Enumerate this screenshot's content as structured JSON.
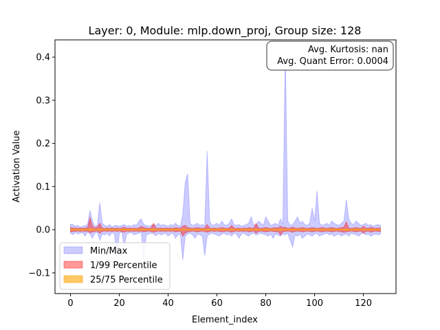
{
  "chart_data": {
    "type": "area",
    "title": "Layer: 0, Module: mlp.down_proj,  Group size: 128",
    "xlabel": "Element_index",
    "ylabel": "Activation Value",
    "xlim": [
      -6.35,
      133.35
    ],
    "ylim": [
      -0.148,
      0.44
    ],
    "x_ticks": [
      0,
      20,
      40,
      60,
      80,
      100,
      120
    ],
    "y_ticks": [
      -0.1,
      0.0,
      0.1,
      0.2,
      0.3,
      0.4
    ],
    "y_tick_labels": [
      "−0.1",
      "0.0",
      "0.1",
      "0.2",
      "0.3",
      "0.4"
    ],
    "grid": false,
    "legend_position": "lower-left",
    "annotation": {
      "line1": "Avg. Kurtosis: nan",
      "line2": "Avg. Quant Error: 0.0004",
      "position": "top-right"
    },
    "x": [
      0,
      1,
      2,
      3,
      4,
      5,
      6,
      7,
      8,
      9,
      10,
      11,
      12,
      13,
      14,
      15,
      16,
      17,
      18,
      19,
      20,
      21,
      22,
      23,
      24,
      25,
      26,
      27,
      28,
      29,
      30,
      31,
      32,
      33,
      34,
      35,
      36,
      37,
      38,
      39,
      40,
      41,
      42,
      43,
      44,
      45,
      46,
      47,
      48,
      49,
      50,
      51,
      52,
      53,
      54,
      55,
      56,
      57,
      58,
      59,
      60,
      61,
      62,
      63,
      64,
      65,
      66,
      67,
      68,
      69,
      70,
      71,
      72,
      73,
      74,
      75,
      76,
      77,
      78,
      79,
      80,
      81,
      82,
      83,
      84,
      85,
      86,
      87,
      88,
      89,
      90,
      91,
      92,
      93,
      94,
      95,
      96,
      97,
      98,
      99,
      100,
      101,
      102,
      103,
      104,
      105,
      106,
      107,
      108,
      109,
      110,
      111,
      112,
      113,
      114,
      115,
      116,
      117,
      118,
      119,
      120,
      121,
      122,
      123,
      124,
      125,
      126,
      127
    ],
    "series": [
      {
        "name": "Min/Max",
        "color": "#0000ff",
        "opacity": 0.2,
        "lower": [
          -0.008,
          -0.012,
          -0.006,
          -0.01,
          -0.008,
          -0.007,
          -0.015,
          -0.005,
          -0.01,
          -0.02,
          -0.008,
          -0.006,
          -0.025,
          -0.01,
          -0.012,
          -0.008,
          -0.015,
          -0.006,
          -0.01,
          -0.065,
          -0.008,
          -0.005,
          -0.04,
          -0.01,
          -0.008,
          -0.006,
          -0.012,
          -0.01,
          -0.008,
          -0.006,
          -0.07,
          -0.012,
          -0.01,
          -0.008,
          -0.01,
          -0.014,
          -0.008,
          -0.012,
          -0.01,
          -0.008,
          -0.015,
          -0.01,
          -0.008,
          -0.02,
          -0.012,
          -0.01,
          -0.07,
          -0.015,
          -0.01,
          -0.008,
          -0.012,
          -0.02,
          -0.01,
          -0.012,
          -0.015,
          -0.06,
          -0.015,
          -0.01,
          -0.008,
          -0.01,
          -0.012,
          -0.015,
          -0.01,
          -0.008,
          -0.012,
          -0.01,
          -0.015,
          -0.008,
          -0.01,
          -0.02,
          -0.01,
          -0.008,
          -0.012,
          -0.015,
          -0.01,
          -0.008,
          -0.012,
          -0.01,
          -0.008,
          -0.01,
          -0.012,
          -0.015,
          -0.01,
          -0.02,
          -0.01,
          -0.012,
          -0.015,
          -0.01,
          -0.012,
          -0.008,
          -0.025,
          -0.04,
          -0.012,
          -0.015,
          -0.01,
          -0.02,
          -0.015,
          -0.01,
          -0.012,
          -0.015,
          -0.01,
          -0.008,
          -0.015,
          -0.012,
          -0.01,
          -0.008,
          -0.012,
          -0.01,
          -0.015,
          -0.012,
          -0.01,
          -0.015,
          -0.012,
          -0.01,
          -0.015,
          -0.008,
          -0.01,
          -0.012,
          -0.015,
          -0.01,
          -0.008,
          -0.012,
          -0.01,
          -0.015,
          -0.012,
          -0.01,
          -0.012,
          -0.01
        ],
        "upper": [
          0.013,
          0.012,
          0.008,
          0.01,
          0.006,
          0.008,
          0.01,
          0.012,
          0.045,
          0.02,
          0.008,
          0.01,
          0.063,
          0.015,
          0.01,
          0.008,
          0.012,
          0.006,
          0.01,
          0.01,
          0.008,
          0.01,
          0.012,
          0.008,
          0.01,
          0.008,
          0.012,
          0.01,
          0.02,
          0.025,
          0.012,
          0.01,
          0.008,
          0.01,
          0.012,
          0.01,
          0.015,
          0.01,
          0.012,
          0.01,
          0.008,
          0.012,
          0.01,
          0.015,
          0.01,
          0.008,
          0.035,
          0.11,
          0.13,
          0.015,
          0.01,
          0.012,
          0.015,
          0.01,
          0.012,
          0.01,
          0.183,
          0.02,
          0.01,
          0.012,
          0.015,
          0.01,
          0.02,
          0.012,
          0.01,
          0.015,
          0.025,
          0.012,
          0.01,
          0.012,
          0.008,
          0.01,
          0.012,
          0.015,
          0.03,
          0.012,
          0.01,
          0.02,
          0.015,
          0.01,
          0.03,
          0.02,
          0.01,
          0.012,
          0.015,
          0.01,
          0.025,
          0.012,
          0.415,
          0.02,
          0.01,
          0.012,
          0.02,
          0.03,
          0.015,
          0.02,
          0.012,
          0.01,
          0.015,
          0.05,
          0.02,
          0.09,
          0.015,
          0.01,
          0.012,
          0.015,
          0.01,
          0.02,
          0.015,
          0.012,
          0.01,
          0.015,
          0.02,
          0.07,
          0.025,
          0.015,
          0.012,
          0.02,
          0.015,
          0.01,
          0.012,
          0.015,
          0.01,
          0.012,
          0.008,
          0.01,
          0.012,
          0.01
        ]
      },
      {
        "name": "1/99 Percentile",
        "color": "#ff0000",
        "opacity": 0.4,
        "lower": [
          -0.005,
          -0.004,
          -0.004,
          -0.003,
          -0.004,
          -0.003,
          -0.004,
          -0.003,
          -0.007,
          -0.005,
          -0.004,
          -0.003,
          -0.008,
          -0.004,
          -0.003,
          -0.004,
          -0.003,
          -0.004,
          -0.003,
          -0.004,
          -0.003,
          -0.004,
          -0.006,
          -0.003,
          -0.004,
          -0.003,
          -0.004,
          -0.003,
          -0.004,
          -0.003,
          -0.005,
          -0.004,
          -0.003,
          -0.004,
          -0.006,
          -0.004,
          -0.003,
          -0.004,
          -0.003,
          -0.004,
          -0.003,
          -0.004,
          -0.003,
          -0.005,
          -0.004,
          -0.003,
          -0.015,
          -0.008,
          -0.005,
          -0.004,
          -0.003,
          -0.004,
          -0.005,
          -0.004,
          -0.003,
          -0.004,
          -0.006,
          -0.004,
          -0.003,
          -0.004,
          -0.003,
          -0.004,
          -0.005,
          -0.004,
          -0.003,
          -0.004,
          -0.006,
          -0.004,
          -0.003,
          -0.004,
          -0.003,
          -0.004,
          -0.003,
          -0.005,
          -0.004,
          -0.003,
          -0.008,
          -0.004,
          -0.003,
          -0.004,
          -0.005,
          -0.004,
          -0.003,
          -0.004,
          -0.005,
          -0.004,
          -0.012,
          -0.005,
          -0.004,
          -0.003,
          -0.004,
          -0.006,
          -0.004,
          -0.003,
          -0.004,
          -0.005,
          -0.004,
          -0.003,
          -0.004,
          -0.005,
          -0.004,
          -0.003,
          -0.004,
          -0.005,
          -0.004,
          -0.003,
          -0.004,
          -0.005,
          -0.004,
          -0.003,
          -0.004,
          -0.005,
          -0.006,
          -0.005,
          -0.004,
          -0.003,
          -0.004,
          -0.005,
          -0.004,
          -0.003,
          -0.008,
          -0.004,
          -0.003,
          -0.006,
          -0.004,
          -0.003,
          -0.004,
          -0.004
        ],
        "upper": [
          0.005,
          0.004,
          0.004,
          0.003,
          0.004,
          0.003,
          0.004,
          0.005,
          0.028,
          0.008,
          0.004,
          0.006,
          0.015,
          0.004,
          0.003,
          0.004,
          0.003,
          0.004,
          0.003,
          0.004,
          0.003,
          0.004,
          0.006,
          0.003,
          0.004,
          0.003,
          0.004,
          0.003,
          0.004,
          0.008,
          0.005,
          0.004,
          0.003,
          0.004,
          0.015,
          0.004,
          0.003,
          0.004,
          0.003,
          0.004,
          0.003,
          0.004,
          0.003,
          0.005,
          0.004,
          0.003,
          0.008,
          0.01,
          0.005,
          0.004,
          0.003,
          0.004,
          0.005,
          0.004,
          0.003,
          0.004,
          0.012,
          0.004,
          0.003,
          0.004,
          0.003,
          0.004,
          0.005,
          0.004,
          0.003,
          0.004,
          0.01,
          0.004,
          0.003,
          0.004,
          0.003,
          0.004,
          0.003,
          0.005,
          0.004,
          0.003,
          0.015,
          0.004,
          0.003,
          0.004,
          0.005,
          0.004,
          0.003,
          0.004,
          0.005,
          0.004,
          0.008,
          0.005,
          0.006,
          0.003,
          0.004,
          0.006,
          0.004,
          0.003,
          0.004,
          0.005,
          0.004,
          0.003,
          0.004,
          0.005,
          0.004,
          0.003,
          0.004,
          0.005,
          0.004,
          0.003,
          0.004,
          0.005,
          0.004,
          0.003,
          0.004,
          0.005,
          0.006,
          0.018,
          0.004,
          0.003,
          0.004,
          0.005,
          0.004,
          0.003,
          0.008,
          0.004,
          0.003,
          0.006,
          0.004,
          0.003,
          0.004,
          0.004
        ]
      },
      {
        "name": "25/75 Percentile",
        "color": "#ffa500",
        "opacity": 0.6,
        "lower": [
          -0.001,
          -0.0015,
          -0.001,
          -0.0012,
          -0.001,
          -0.0015,
          -0.001,
          -0.0012,
          -0.002,
          -0.0015,
          -0.001,
          -0.0012,
          -0.002,
          -0.001,
          -0.0015,
          -0.001,
          -0.0012,
          -0.001,
          -0.0015,
          -0.001,
          -0.0012,
          -0.001,
          -0.0015,
          -0.001,
          -0.0012,
          -0.001,
          -0.0015,
          -0.001,
          -0.0012,
          -0.0015,
          -0.001,
          -0.0012,
          -0.001,
          -0.0015,
          -0.002,
          -0.001,
          -0.0012,
          -0.001,
          -0.0015,
          -0.001,
          -0.0012,
          -0.001,
          -0.0015,
          -0.001,
          -0.0012,
          -0.001,
          -0.002,
          -0.0015,
          -0.001,
          -0.0012,
          -0.001,
          -0.0015,
          -0.001,
          -0.0012,
          -0.001,
          -0.0015,
          -0.001,
          -0.0012,
          -0.001,
          -0.0015,
          -0.001,
          -0.0012,
          -0.001,
          -0.0015,
          -0.001,
          -0.0012,
          -0.0015,
          -0.001,
          -0.0012,
          -0.001,
          -0.0015,
          -0.001,
          -0.0012,
          -0.001,
          -0.0015,
          -0.001,
          -0.002,
          -0.001,
          -0.0012,
          -0.001,
          -0.0015,
          -0.001,
          -0.0012,
          -0.001,
          -0.0015,
          -0.001,
          -0.002,
          -0.0012,
          -0.0015,
          -0.001,
          -0.0012,
          -0.001,
          -0.0015,
          -0.001,
          -0.0012,
          -0.001,
          -0.0015,
          -0.001,
          -0.0012,
          -0.001,
          -0.0015,
          -0.001,
          -0.0012,
          -0.001,
          -0.0015,
          -0.001,
          -0.0012,
          -0.001,
          -0.0015,
          -0.001,
          -0.0012,
          -0.001,
          -0.0015,
          -0.002,
          -0.0012,
          -0.001,
          -0.0015,
          -0.001,
          -0.0012,
          -0.001,
          -0.0015,
          -0.001,
          -0.0012,
          -0.001,
          -0.0015,
          -0.001,
          -0.0012,
          -0.001
        ],
        "upper": [
          0.001,
          0.0015,
          0.001,
          0.0012,
          0.001,
          0.0015,
          0.001,
          0.0012,
          0.003,
          0.0015,
          0.001,
          0.0012,
          0.002,
          0.001,
          0.0015,
          0.001,
          0.0012,
          0.001,
          0.0015,
          0.001,
          0.0012,
          0.001,
          0.0015,
          0.001,
          0.0012,
          0.001,
          0.0015,
          0.001,
          0.0012,
          0.0015,
          0.001,
          0.0012,
          0.001,
          0.0015,
          0.002,
          0.001,
          0.0012,
          0.001,
          0.0015,
          0.001,
          0.0012,
          0.001,
          0.0015,
          0.001,
          0.0012,
          0.001,
          0.002,
          0.0015,
          0.001,
          0.0012,
          0.001,
          0.0015,
          0.001,
          0.0012,
          0.001,
          0.0015,
          0.001,
          0.0012,
          0.001,
          0.0015,
          0.001,
          0.0012,
          0.001,
          0.0015,
          0.001,
          0.0012,
          0.0015,
          0.001,
          0.0012,
          0.001,
          0.0015,
          0.001,
          0.0012,
          0.001,
          0.0015,
          0.001,
          0.002,
          0.001,
          0.0012,
          0.001,
          0.0015,
          0.001,
          0.0012,
          0.001,
          0.0015,
          0.001,
          0.002,
          0.0012,
          0.0015,
          0.001,
          0.0012,
          0.001,
          0.0015,
          0.001,
          0.0012,
          0.001,
          0.0015,
          0.001,
          0.0012,
          0.001,
          0.0015,
          0.001,
          0.0012,
          0.001,
          0.0015,
          0.001,
          0.0012,
          0.001,
          0.0015,
          0.001,
          0.0012,
          0.001,
          0.0015,
          0.002,
          0.0012,
          0.001,
          0.0015,
          0.001,
          0.0012,
          0.001,
          0.0015,
          0.001,
          0.0012,
          0.001,
          0.0015,
          0.001,
          0.0012,
          0.001
        ]
      }
    ]
  }
}
